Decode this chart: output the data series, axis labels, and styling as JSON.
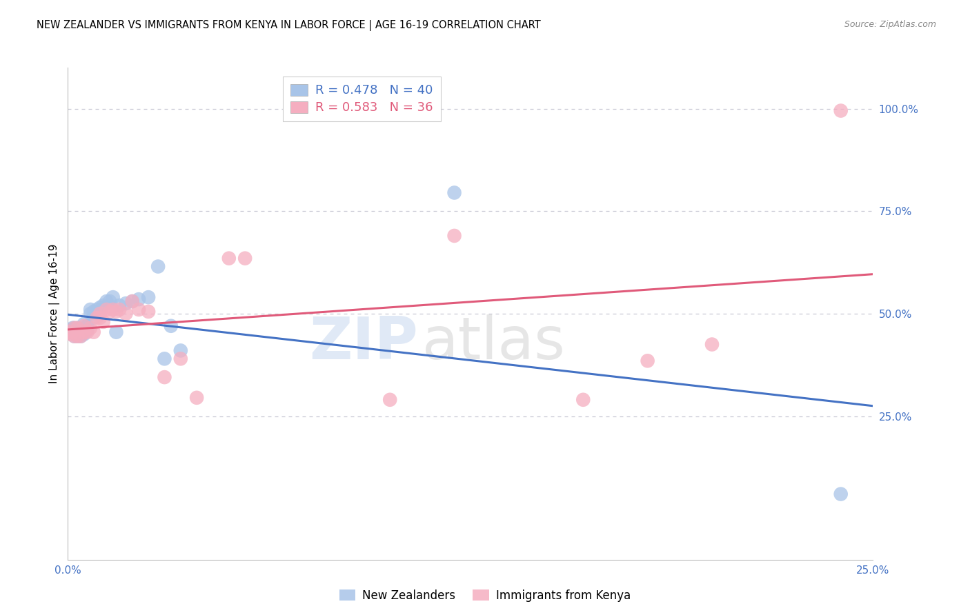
{
  "title": "NEW ZEALANDER VS IMMIGRANTS FROM KENYA IN LABOR FORCE | AGE 16-19 CORRELATION CHART",
  "source": "Source: ZipAtlas.com",
  "ylabel_left": "In Labor Force | Age 16-19",
  "legend_label_blue": "New Zealanders",
  "legend_label_pink": "Immigrants from Kenya",
  "r_blue": 0.478,
  "n_blue": 40,
  "r_pink": 0.583,
  "n_pink": 36,
  "blue_color": "#a8c4e8",
  "pink_color": "#f5aec0",
  "line_blue": "#4472c4",
  "line_pink": "#e05a7a",
  "watermark_zip": "ZIP",
  "watermark_atlas": "atlas",
  "xlim": [
    0.0,
    0.25
  ],
  "ylim": [
    -0.1,
    1.1
  ],
  "xtick_positions": [
    0.0,
    0.25
  ],
  "xtick_labels": [
    "0.0%",
    "25.0%"
  ],
  "yticks_right": [
    0.25,
    0.5,
    0.75,
    1.0
  ],
  "ytick_labels": [
    "25.0%",
    "50.0%",
    "75.0%",
    "100.0%"
  ],
  "blue_x": [
    0.0005,
    0.001,
    0.0015,
    0.002,
    0.002,
    0.002,
    0.002,
    0.003,
    0.003,
    0.003,
    0.004,
    0.004,
    0.004,
    0.005,
    0.005,
    0.005,
    0.006,
    0.006,
    0.007,
    0.007,
    0.008,
    0.008,
    0.009,
    0.01,
    0.011,
    0.012,
    0.013,
    0.014,
    0.015,
    0.016,
    0.018,
    0.02,
    0.022,
    0.025,
    0.028,
    0.03,
    0.032,
    0.035,
    0.12,
    0.24
  ],
  "blue_y": [
    0.455,
    0.46,
    0.465,
    0.445,
    0.455,
    0.46,
    0.465,
    0.445,
    0.455,
    0.465,
    0.445,
    0.455,
    0.46,
    0.45,
    0.455,
    0.475,
    0.46,
    0.47,
    0.5,
    0.51,
    0.49,
    0.505,
    0.51,
    0.515,
    0.52,
    0.53,
    0.53,
    0.54,
    0.455,
    0.52,
    0.525,
    0.53,
    0.535,
    0.54,
    0.615,
    0.39,
    0.47,
    0.41,
    0.795,
    0.06
  ],
  "pink_x": [
    0.0005,
    0.001,
    0.002,
    0.002,
    0.003,
    0.003,
    0.004,
    0.005,
    0.005,
    0.006,
    0.007,
    0.008,
    0.009,
    0.01,
    0.01,
    0.011,
    0.012,
    0.013,
    0.014,
    0.015,
    0.016,
    0.018,
    0.02,
    0.022,
    0.025,
    0.03,
    0.035,
    0.04,
    0.05,
    0.055,
    0.1,
    0.12,
    0.16,
    0.18,
    0.2,
    0.24
  ],
  "pink_y": [
    0.455,
    0.45,
    0.445,
    0.465,
    0.445,
    0.465,
    0.445,
    0.455,
    0.47,
    0.455,
    0.465,
    0.455,
    0.49,
    0.49,
    0.5,
    0.48,
    0.51,
    0.505,
    0.51,
    0.505,
    0.51,
    0.5,
    0.53,
    0.51,
    0.505,
    0.345,
    0.39,
    0.295,
    0.635,
    0.635,
    0.29,
    0.69,
    0.29,
    0.385,
    0.425,
    0.995
  ],
  "axis_color": "#4472c4",
  "grid_color": "#c8c8d4",
  "title_fontsize": 10.5,
  "axis_label_fontsize": 11,
  "tick_fontsize": 11,
  "legend_fontsize": 13,
  "source_fontsize": 9
}
